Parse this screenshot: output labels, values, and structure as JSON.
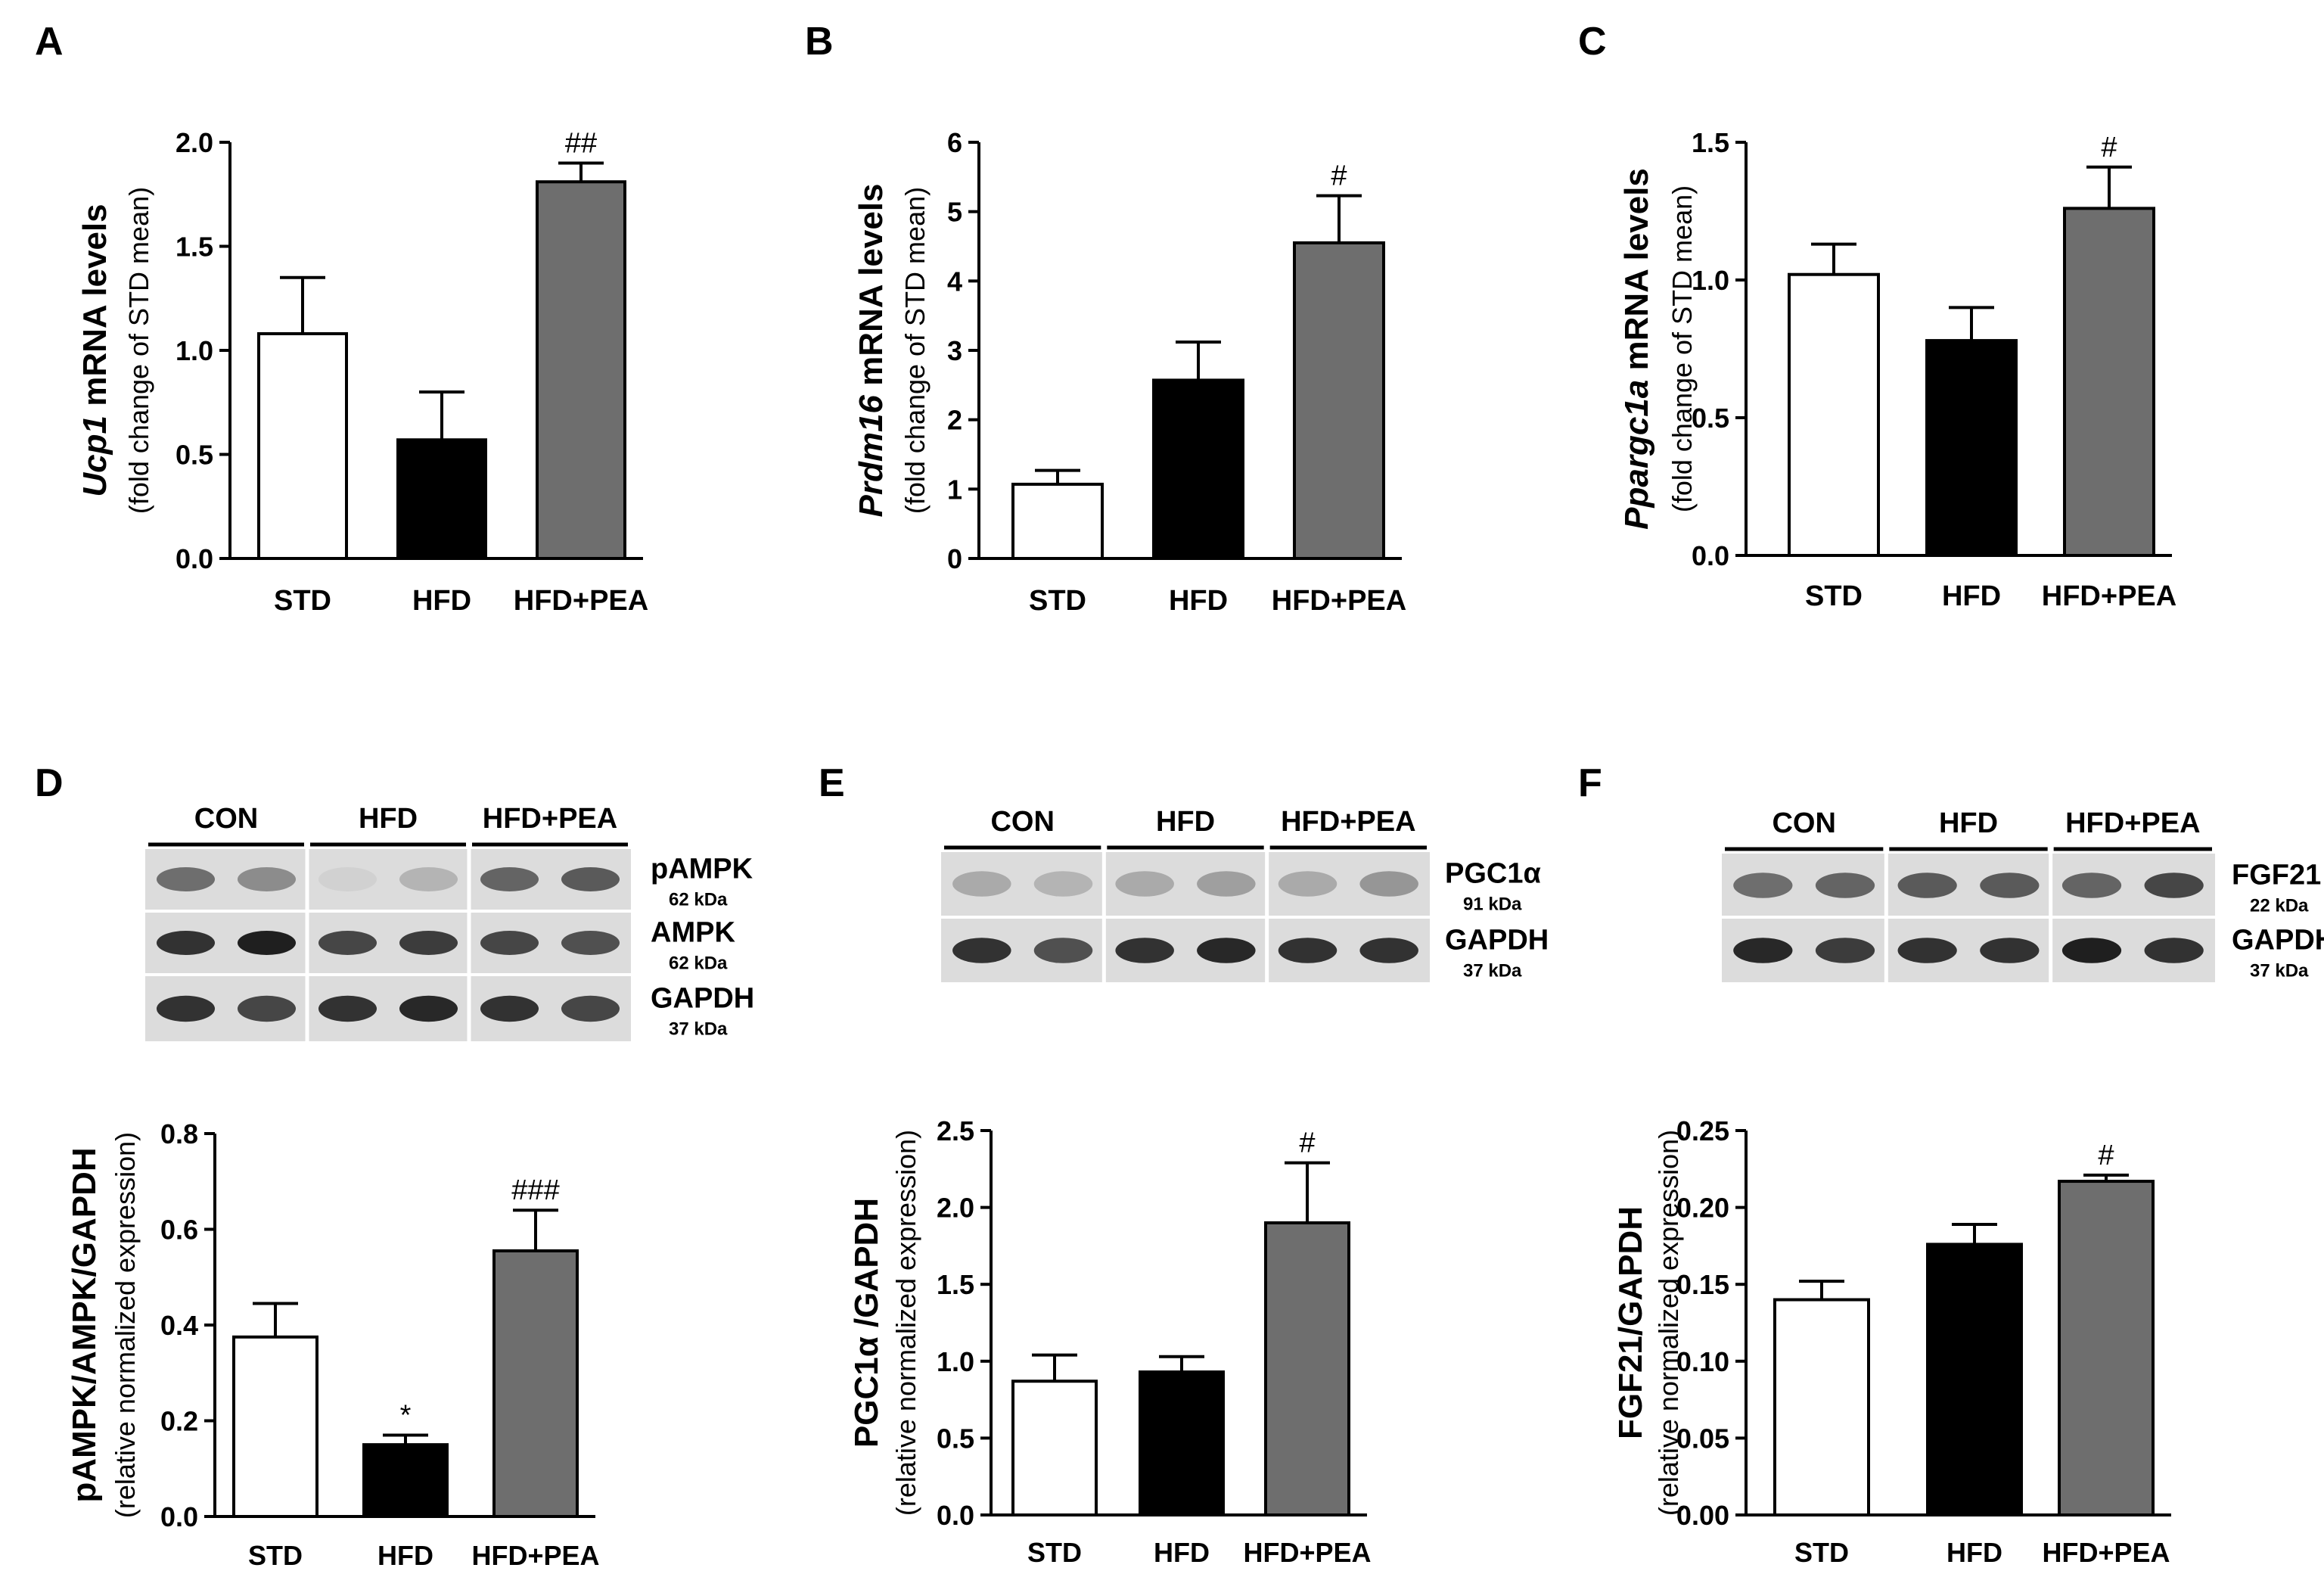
{
  "figure": {
    "panel_letters": [
      "A",
      "B",
      "C",
      "D",
      "E",
      "F"
    ]
  },
  "colors": {
    "STD": "#ffffff",
    "HFD": "#000000",
    "HFD+PEA": "#6e6e6e",
    "axis": "#000000"
  },
  "chart_data": [
    {
      "panel": "A",
      "type": "bar",
      "categories": [
        "STD",
        "HFD",
        "HFD+PEA"
      ],
      "values": [
        1.08,
        0.57,
        1.81
      ],
      "errors": [
        0.27,
        0.23,
        0.09
      ],
      "annotations": [
        "",
        "",
        "##"
      ],
      "ylabel_italic": "Ucp1",
      "ylabel_rest": " mRNA levels",
      "ylabel2": "(fold change of STD mean)",
      "ylim": [
        0,
        2.0
      ],
      "yticks": [
        "0.0",
        "0.5",
        "1.0",
        "1.5",
        "2.0"
      ]
    },
    {
      "panel": "B",
      "type": "bar",
      "categories": [
        "STD",
        "HFD",
        "HFD+PEA"
      ],
      "values": [
        1.07,
        2.57,
        4.55
      ],
      "errors": [
        0.2,
        0.55,
        0.68
      ],
      "annotations": [
        "",
        "",
        "#"
      ],
      "ylabel_italic": "Prdm16",
      "ylabel_rest": " mRNA levels",
      "ylabel2": "(fold change of STD mean)",
      "ylim": [
        0,
        6
      ],
      "yticks": [
        "0",
        "1",
        "2",
        "3",
        "4",
        "5",
        "6"
      ]
    },
    {
      "panel": "C",
      "type": "bar",
      "categories": [
        "STD",
        "HFD",
        "HFD+PEA"
      ],
      "values": [
        1.02,
        0.78,
        1.26
      ],
      "errors": [
        0.11,
        0.12,
        0.15
      ],
      "annotations": [
        "",
        "",
        "#"
      ],
      "ylabel_italic": "Ppargc1a",
      "ylabel_rest": " mRNA levels",
      "ylabel2": "(fold change of STD mean)",
      "ylim": [
        0,
        1.5
      ],
      "yticks": [
        "0.0",
        "0.5",
        "1.0",
        "1.5"
      ]
    },
    {
      "panel": "D",
      "type": "bar",
      "categories": [
        "STD",
        "HFD",
        "HFD+PEA"
      ],
      "values": [
        0.375,
        0.15,
        0.555
      ],
      "errors": [
        0.07,
        0.02,
        0.085
      ],
      "annotations": [
        "",
        "*",
        "###"
      ],
      "ylabel_italic": "",
      "ylabel_rest": "pAMPK/AMPK/GAPDH",
      "ylabel2": "(relative normalized expression)",
      "ylim": [
        0,
        0.8
      ],
      "yticks": [
        "0.0",
        "0.2",
        "0.4",
        "0.6",
        "0.8"
      ]
    },
    {
      "panel": "E",
      "type": "bar",
      "categories": [
        "STD",
        "HFD",
        "HFD+PEA"
      ],
      "values": [
        0.87,
        0.93,
        1.9
      ],
      "errors": [
        0.17,
        0.1,
        0.39
      ],
      "annotations": [
        "",
        "",
        "#"
      ],
      "ylabel_italic": "",
      "ylabel_rest": "PGC1α /GAPDH",
      "ylabel2": "(relative normalized expression)",
      "ylim": [
        0,
        2.5
      ],
      "yticks": [
        "0.0",
        "0.5",
        "1.0",
        "1.5",
        "2.0",
        "2.5"
      ]
    },
    {
      "panel": "F",
      "type": "bar",
      "categories": [
        "STD",
        "HFD",
        "HFD+PEA"
      ],
      "values": [
        0.14,
        0.176,
        0.217
      ],
      "errors": [
        0.012,
        0.013,
        0.004
      ],
      "annotations": [
        "",
        "",
        "#"
      ],
      "ylabel_italic": "",
      "ylabel_rest": "FGF21/GAPDH",
      "ylabel2": "(relative normalized expression)",
      "ylim": [
        0,
        0.25
      ],
      "yticks": [
        "0.00",
        "0.05",
        "0.10",
        "0.15",
        "0.20",
        "0.25"
      ]
    }
  ],
  "blots": [
    {
      "panel": "D",
      "groups": [
        "CON",
        "HFD",
        "HFD+PEA"
      ],
      "rows": [
        {
          "name": "pAMPK",
          "kda": "62 kDa",
          "intensity": [
            0.55,
            0.4,
            0.05,
            0.2,
            0.6,
            0.65
          ]
        },
        {
          "name": "AMPK",
          "kda": "62 kDa",
          "intensity": [
            0.85,
            0.95,
            0.75,
            0.8,
            0.75,
            0.7
          ]
        },
        {
          "name": "GAPDH",
          "kda": "37 kDa",
          "intensity": [
            0.85,
            0.75,
            0.85,
            0.9,
            0.85,
            0.75
          ]
        }
      ]
    },
    {
      "panel": "E",
      "groups": [
        "CON",
        "HFD",
        "HFD+PEA"
      ],
      "rows": [
        {
          "name": "PGC1α",
          "kda": "91 kDa",
          "intensity": [
            0.25,
            0.2,
            0.25,
            0.3,
            0.25,
            0.35
          ]
        },
        {
          "name": "GAPDH",
          "kda": "37 kDa",
          "intensity": [
            0.85,
            0.7,
            0.85,
            0.9,
            0.85,
            0.85
          ]
        }
      ]
    },
    {
      "panel": "F",
      "groups": [
        "CON",
        "HFD",
        "HFD+PEA"
      ],
      "rows": [
        {
          "name": "FGF21",
          "kda": "22 kDa",
          "intensity": [
            0.55,
            0.6,
            0.65,
            0.65,
            0.6,
            0.75
          ]
        },
        {
          "name": "GAPDH",
          "kda": "37 kDa",
          "intensity": [
            0.9,
            0.8,
            0.85,
            0.85,
            0.95,
            0.85
          ]
        }
      ]
    }
  ]
}
